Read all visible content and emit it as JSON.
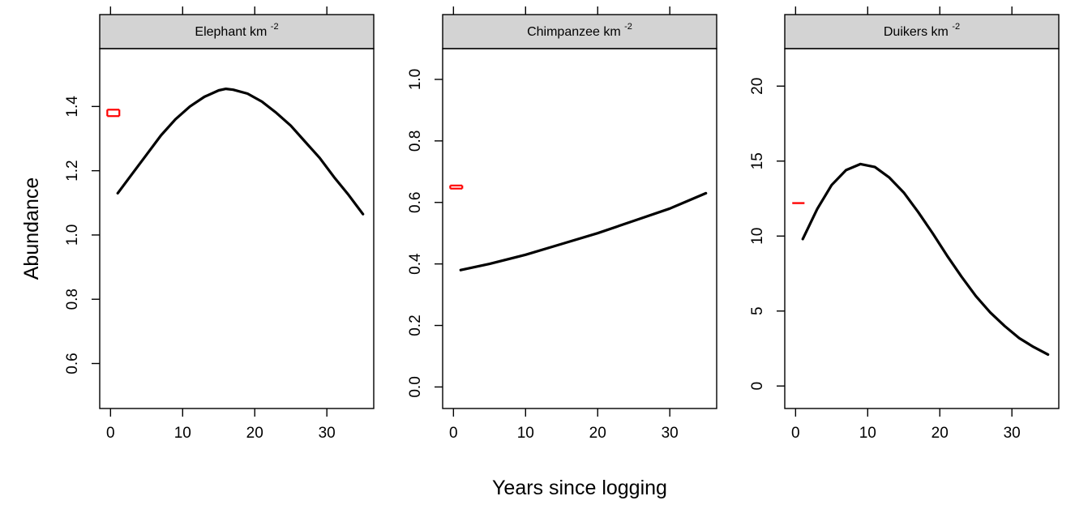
{
  "figure": {
    "ylabel": "Abundance",
    "xlabel": "Years since logging"
  },
  "chart_data": [
    {
      "type": "line",
      "panel_title": "Elephant km",
      "panel_title_sup": "-2",
      "xlim": [
        -1.5,
        36.5
      ],
      "ylim": [
        0.46,
        1.58
      ],
      "x_ticks": [
        0,
        10,
        20,
        30
      ],
      "y_ticks": [
        0.6,
        0.8,
        1.0,
        1.2,
        1.4
      ],
      "y_tick_labels": [
        "0.6",
        "0.8",
        "1.0",
        "1.2",
        "1.4"
      ],
      "top_ticks": [
        0,
        10,
        20,
        30
      ],
      "series": [
        {
          "color": "#000000",
          "x": [
            1,
            3,
            5,
            7,
            9,
            11,
            13,
            15,
            16,
            17,
            19,
            21,
            23,
            25,
            27,
            29,
            31,
            33,
            35
          ],
          "y": [
            1.13,
            1.19,
            1.25,
            1.31,
            1.36,
            1.4,
            1.43,
            1.45,
            1.455,
            1.452,
            1.44,
            1.415,
            1.38,
            1.34,
            1.29,
            1.24,
            1.18,
            1.125,
            1.065
          ]
        }
      ],
      "observed": {
        "color": "#ff0000",
        "x0": 0,
        "x1": 1,
        "y": [
          1.37,
          1.39
        ]
      }
    },
    {
      "type": "line",
      "panel_title": "Chimpanzee km",
      "panel_title_sup": "-2",
      "xlim": [
        -1.5,
        36.5
      ],
      "ylim": [
        -0.07,
        1.1
      ],
      "x_ticks": [
        0,
        10,
        20,
        30
      ],
      "y_ticks": [
        0.0,
        0.2,
        0.4,
        0.6,
        0.8,
        1.0
      ],
      "y_tick_labels": [
        "0.0",
        "0.2",
        "0.4",
        "0.6",
        "0.8",
        "1.0"
      ],
      "top_ticks": [
        0,
        10,
        20,
        30
      ],
      "series": [
        {
          "color": "#000000",
          "x": [
            1,
            5,
            10,
            15,
            20,
            25,
            30,
            35
          ],
          "y": [
            0.38,
            0.4,
            0.43,
            0.465,
            0.5,
            0.54,
            0.58,
            0.63
          ]
        }
      ],
      "observed": {
        "color": "#ff0000",
        "x0": 0,
        "x1": 1,
        "y": [
          0.645,
          0.655
        ]
      }
    },
    {
      "type": "line",
      "panel_title": "Duikers km",
      "panel_title_sup": "-2",
      "xlim": [
        -1.5,
        36.5
      ],
      "ylim": [
        -1.5,
        22.5
      ],
      "x_ticks": [
        0,
        10,
        20,
        30
      ],
      "y_ticks": [
        0,
        5,
        10,
        15,
        20
      ],
      "y_tick_labels": [
        "0",
        "5",
        "10",
        "15",
        "20"
      ],
      "top_ticks": [
        0,
        10,
        20,
        30
      ],
      "series": [
        {
          "color": "#000000",
          "x": [
            1,
            3,
            5,
            7,
            9,
            11,
            13,
            15,
            17,
            19,
            21,
            23,
            25,
            27,
            29,
            31,
            33,
            35
          ],
          "y": [
            9.8,
            11.8,
            13.4,
            14.4,
            14.8,
            14.6,
            13.9,
            12.9,
            11.6,
            10.2,
            8.7,
            7.3,
            6.0,
            4.9,
            4.0,
            3.2,
            2.6,
            2.1
          ]
        }
      ],
      "observed": {
        "color": "#ff0000",
        "x0": 0,
        "x1": 1,
        "y": [
          12.2,
          12.2
        ]
      }
    }
  ]
}
